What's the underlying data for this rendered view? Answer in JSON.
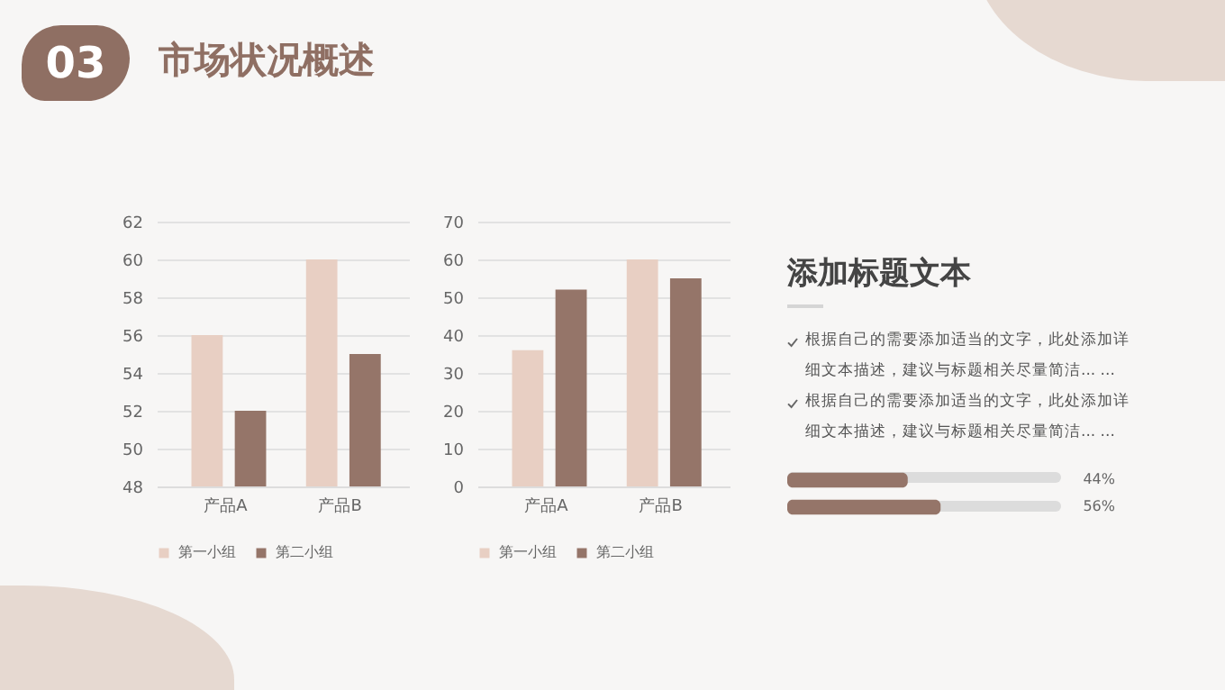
{
  "chart_data": [
    {
      "type": "other",
      "title": "市场状况概述",
      "annotations": [
        "03"
      ]
    },
    {
      "type": "bar",
      "categories": [
        "产品A",
        "产品B"
      ],
      "series": [
        {
          "name": "第一小组",
          "color": "#e8cfc3",
          "values": [
            56,
            60
          ]
        },
        {
          "name": "第二小组",
          "color": "#957569",
          "values": [
            52,
            55
          ]
        }
      ],
      "ylim": [
        48,
        62
      ],
      "yticks": [
        48,
        50,
        52,
        54,
        56,
        58,
        60,
        62
      ],
      "grid": "y",
      "legend": "bottom"
    },
    {
      "type": "bar",
      "categories": [
        "产品A",
        "产品B"
      ],
      "series": [
        {
          "name": "第一小组",
          "color": "#e8cfc3",
          "values": [
            36,
            60
          ]
        },
        {
          "name": "第二小组",
          "color": "#957569",
          "values": [
            52,
            55
          ]
        }
      ],
      "ylim": [
        0,
        70
      ],
      "yticks": [
        0,
        10,
        20,
        30,
        40,
        50,
        60,
        70
      ],
      "grid": "y",
      "legend": "bottom"
    },
    {
      "type": "other",
      "title": "添加标题文本",
      "annotations": [
        "根据自己的需要添加适当的文字，此处添加详细文本描述，建议与标题相关尽量简洁... ...",
        "根据自己的需要添加适当的文字，此处添加详细文本描述，建议与标题相关尽量简洁... ..."
      ]
    },
    {
      "type": "bar",
      "orientation": "horizontal",
      "categories": [
        null,
        null
      ],
      "values": [
        44,
        56
      ],
      "value_labels": [
        "44%",
        "56%"
      ],
      "color": "#957569",
      "xlim": [
        0,
        100
      ],
      "tick_labels": false
    }
  ]
}
